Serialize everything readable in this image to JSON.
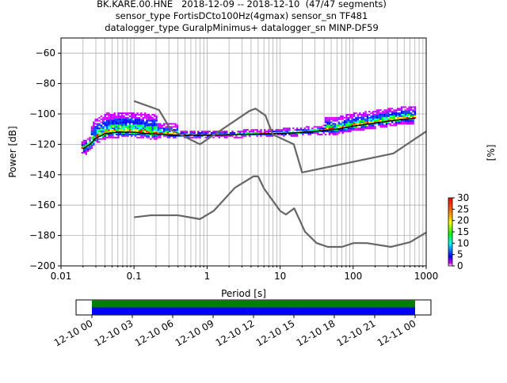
{
  "title_lines": [
    "BK.KARE.00.HNE   2018-12-09 -- 2018-12-10  (47/47 segments)",
    "sensor_type FortisDCto100Hz(4gmax) sensor_sn TF481",
    "datalogger_type GuralpMinimus+ datalogger_sn MINP-DF59"
  ],
  "chart_data": [
    {
      "type": "heatmap",
      "xlabel": "Period [s]",
      "ylabel": "Power [dB]",
      "xscale": "log",
      "xlim": [
        0.01,
        1000
      ],
      "ylim": [
        -200,
        -50
      ],
      "xticks": [
        0.01,
        0.1,
        1,
        10,
        100,
        1000
      ],
      "xtick_labels": [
        "0.01",
        "0.1",
        "1",
        "10",
        "100",
        "1000"
      ],
      "yticks": [
        -200,
        -180,
        -160,
        -140,
        -120,
        -100,
        -80,
        -60
      ],
      "ytick_labels": [
        "−200",
        "−180",
        "−160",
        "−140",
        "−120",
        "−100",
        "−80",
        "−60"
      ],
      "grid": true,
      "colorbar": {
        "label": "[%]",
        "range": [
          0,
          30
        ],
        "ticks": [
          0,
          5,
          10,
          15,
          20,
          25,
          30
        ],
        "tick_labels": [
          "0",
          "5",
          "10",
          "15",
          "20",
          "25",
          "30"
        ],
        "colormap": "pqlx"
      },
      "noise_models": {
        "high": {
          "period": [
            0.1,
            0.22,
            0.32,
            0.8,
            3.8,
            4.6,
            6.3,
            7.9,
            15.4,
            20,
            354.8,
            1000
          ],
          "power": [
            -91.5,
            -97.4,
            -110.5,
            -120,
            -98,
            -96.5,
            -101,
            -113.5,
            -120,
            -138.5,
            -126,
            -111.5
          ]
        },
        "low": {
          "period": [
            0.1,
            0.17,
            0.4,
            0.8,
            1.24,
            2.4,
            4.3,
            5,
            6,
            10,
            12,
            15.6,
            21.9,
            31.6,
            45,
            70,
            101,
            154,
            328,
            600,
            1000
          ],
          "power": [
            -168,
            -166.7,
            -166.7,
            -169.2,
            -163.7,
            -148.6,
            -141.1,
            -141.1,
            -149,
            -163.8,
            -166.2,
            -162.1,
            -177.5,
            -185,
            -187.5,
            -187.5,
            -185,
            -185,
            -187.5,
            -184.4,
            -178
          ]
        }
      },
      "mean_curve": {
        "period": [
          0.02,
          0.025,
          0.03,
          0.04,
          0.06,
          0.1,
          0.15,
          0.25,
          0.4,
          1,
          3,
          8,
          15,
          30,
          60,
          100,
          200,
          400,
          700
        ],
        "power": [
          -123,
          -120,
          -116,
          -113,
          -112,
          -112,
          -113,
          -113.5,
          -114,
          -114,
          -113.5,
          -113,
          -112.5,
          -111.5,
          -110,
          -108,
          -106,
          -104,
          -103
        ]
      }
    },
    {
      "type": "timeline",
      "x_tick_labels": [
        "12-10 00",
        "12-10 03",
        "12-10 06",
        "12-10 09",
        "12-10 12",
        "12-10 15",
        "12-10 18",
        "12-10 21",
        "12-11 00"
      ],
      "bands": [
        {
          "color": "#008000"
        },
        {
          "color": "#0000ff"
        }
      ]
    }
  ]
}
